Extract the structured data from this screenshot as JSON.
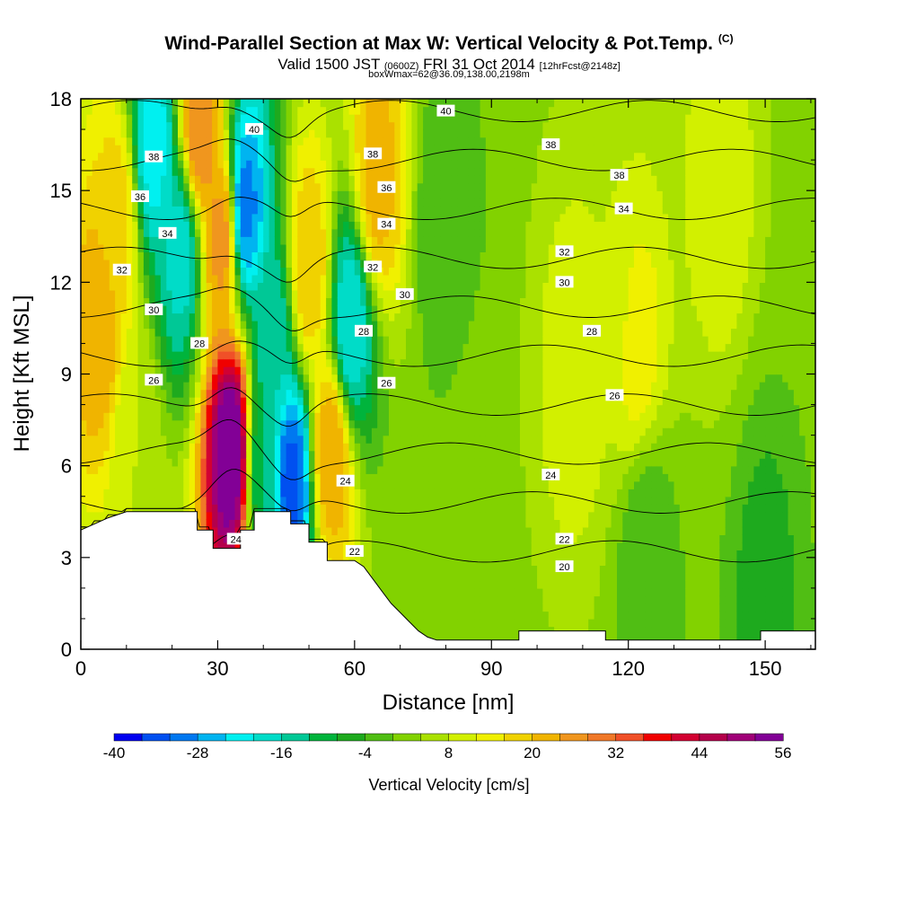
{
  "chart_data": {
    "type": "heatmap",
    "title": "Wind-Parallel Section at Max W: Vertical Velocity & Pot.Temp.",
    "title_mark": "(C)",
    "subtitle_main": "Valid 1500 JST",
    "subtitle_z": "(0600Z)",
    "subtitle_date": "FRI 31 Oct 2014",
    "subtitle_fcst": "[12hrFcst@2148z]",
    "subnote": "boxWmax=62@36.09,138.00,2198m",
    "xlabel": "Distance [nm]",
    "ylabel": "Height [Kft MSL]",
    "xlim": [
      0,
      161
    ],
    "ylim": [
      0,
      18
    ],
    "x_ticks": [
      0,
      30,
      60,
      90,
      120,
      150
    ],
    "y_ticks": [
      0,
      3,
      6,
      9,
      12,
      15,
      18
    ],
    "colorbar": {
      "label": "Vertical Velocity [cm/s]",
      "tick_labels": [
        -40,
        -28,
        -16,
        -4,
        8,
        20,
        32,
        44,
        56
      ],
      "min": -40,
      "max": 56,
      "step": 4,
      "colors": [
        "#0000f0",
        "#0050f0",
        "#0078f0",
        "#00b4f0",
        "#00f0f0",
        "#00dcc8",
        "#00c896",
        "#00b43c",
        "#1eaa1e",
        "#50be14",
        "#82d200",
        "#aae100",
        "#d2f000",
        "#f0f000",
        "#f0d200",
        "#f0b400",
        "#f0961e",
        "#f07828",
        "#f05028",
        "#f00000",
        "#d20032",
        "#b4004b",
        "#a00078",
        "#820096"
      ]
    },
    "velocity_cores": [
      {
        "x": 4,
        "z": 10.5,
        "w": 24
      },
      {
        "x": 8,
        "z": 14.0,
        "w": 18
      },
      {
        "x": 12,
        "z": 6.8,
        "w": 8
      },
      {
        "x": 16,
        "z": 16.5,
        "w": -22
      },
      {
        "x": 22,
        "z": 13.0,
        "w": -18
      },
      {
        "x": 26,
        "z": 17.0,
        "w": 28
      },
      {
        "x": 31,
        "z": 13.5,
        "w": 26
      },
      {
        "x": 33,
        "z": 6.5,
        "w": 58
      },
      {
        "x": 36,
        "z": 14.5,
        "w": -30
      },
      {
        "x": 40,
        "z": 6.0,
        "w": -12
      },
      {
        "x": 42,
        "z": 10.0,
        "w": -16
      },
      {
        "x": 46,
        "z": 5.5,
        "w": -34
      },
      {
        "x": 50,
        "z": 12.5,
        "w": 20
      },
      {
        "x": 55,
        "z": 6.5,
        "w": 24
      },
      {
        "x": 59,
        "z": 10.5,
        "w": -20
      },
      {
        "x": 65,
        "z": 15.5,
        "w": 22
      },
      {
        "x": 80,
        "z": 14.0,
        "w": -4
      },
      {
        "x": 88,
        "z": 5.0,
        "w": 4
      },
      {
        "x": 108,
        "z": 9.0,
        "w": 12
      },
      {
        "x": 116,
        "z": 12.0,
        "w": 8
      },
      {
        "x": 122,
        "z": 10.0,
        "w": 14
      },
      {
        "x": 124,
        "z": 3.0,
        "w": -4
      },
      {
        "x": 140,
        "z": 15.0,
        "w": 12
      },
      {
        "x": 150,
        "z": 2.0,
        "w": -6
      }
    ],
    "theta_contours_C": [
      20,
      22,
      24,
      26,
      28,
      30,
      32,
      34,
      36,
      38,
      40
    ],
    "terrain_profile_kft": [
      [
        0,
        3.9
      ],
      [
        3,
        4.1
      ],
      [
        6,
        4.3
      ],
      [
        10,
        4.5
      ],
      [
        25.5,
        4.5
      ],
      [
        25.5,
        3.9
      ],
      [
        29,
        3.9
      ],
      [
        29,
        3.3
      ],
      [
        35,
        3.3
      ],
      [
        35,
        3.9
      ],
      [
        38,
        3.9
      ],
      [
        38,
        4.5
      ],
      [
        46,
        4.5
      ],
      [
        46,
        4.1
      ],
      [
        50,
        4.1
      ],
      [
        50,
        3.5
      ],
      [
        54,
        3.5
      ],
      [
        54,
        2.9
      ],
      [
        60,
        2.9
      ],
      [
        62,
        2.7
      ],
      [
        64,
        2.3
      ],
      [
        66,
        1.9
      ],
      [
        68,
        1.5
      ],
      [
        70,
        1.2
      ],
      [
        72,
        0.9
      ],
      [
        74,
        0.6
      ],
      [
        76,
        0.4
      ],
      [
        78,
        0.3
      ],
      [
        96,
        0.3
      ],
      [
        96,
        0.6
      ],
      [
        115,
        0.6
      ],
      [
        115,
        0.3
      ],
      [
        149,
        0.3
      ],
      [
        149,
        0.6
      ],
      [
        161,
        0.6
      ]
    ],
    "contour_labels": [
      {
        "text": "40",
        "x": 38,
        "z": 17.0
      },
      {
        "text": "40",
        "x": 80,
        "z": 17.6
      },
      {
        "text": "38",
        "x": 16,
        "z": 16.1
      },
      {
        "text": "38",
        "x": 64,
        "z": 16.2
      },
      {
        "text": "38",
        "x": 103,
        "z": 16.5
      },
      {
        "text": "38",
        "x": 118,
        "z": 15.5
      },
      {
        "text": "36",
        "x": 13,
        "z": 14.8
      },
      {
        "text": "36",
        "x": 67,
        "z": 15.1
      },
      {
        "text": "34",
        "x": 19,
        "z": 13.6
      },
      {
        "text": "34",
        "x": 67,
        "z": 13.9
      },
      {
        "text": "34",
        "x": 119,
        "z": 14.4
      },
      {
        "text": "32",
        "x": 9,
        "z": 12.4
      },
      {
        "text": "32",
        "x": 64,
        "z": 12.5
      },
      {
        "text": "32",
        "x": 106,
        "z": 13.0
      },
      {
        "text": "30",
        "x": 16,
        "z": 11.1
      },
      {
        "text": "30",
        "x": 71,
        "z": 11.6
      },
      {
        "text": "30",
        "x": 106,
        "z": 12.0
      },
      {
        "text": "28",
        "x": 26,
        "z": 10.0
      },
      {
        "text": "28",
        "x": 62,
        "z": 10.4
      },
      {
        "text": "28",
        "x": 112,
        "z": 10.4
      },
      {
        "text": "26",
        "x": 16,
        "z": 8.8
      },
      {
        "text": "26",
        "x": 67,
        "z": 8.7
      },
      {
        "text": "26",
        "x": 117,
        "z": 8.3
      },
      {
        "text": "24",
        "x": 58,
        "z": 5.5
      },
      {
        "text": "24",
        "x": 103,
        "z": 5.7
      },
      {
        "text": "24",
        "x": 34,
        "z": 3.6
      },
      {
        "text": "22",
        "x": 60,
        "z": 3.2
      },
      {
        "text": "22",
        "x": 106,
        "z": 3.6
      },
      {
        "text": "20",
        "x": 106,
        "z": 2.7
      }
    ]
  }
}
